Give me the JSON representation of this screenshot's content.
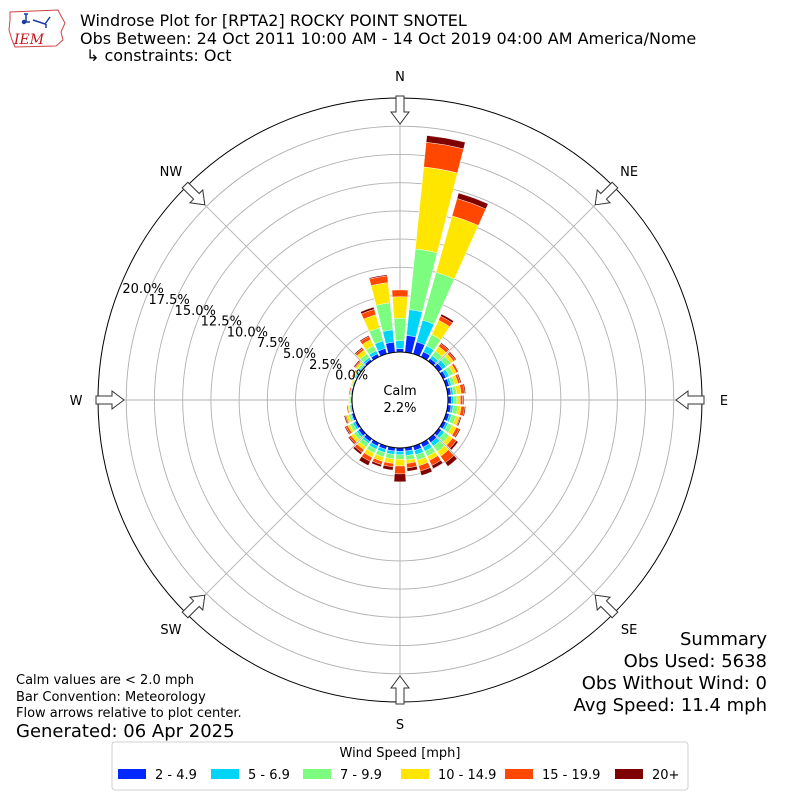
{
  "header": {
    "title_line1": "Windrose Plot for [RPTA2] ROCKY POINT SNOTEL",
    "title_line2": "Obs Between: 24 Oct 2011 10:00 AM - 14 Oct 2019 04:00 AM America/Nome",
    "title_line3": "↳ constraints: Oct",
    "logo_text": "IEM"
  },
  "summary": {
    "heading": "Summary",
    "obs_used": "Obs Used: 5638",
    "obs_without_wind": "Obs Without Wind: 0",
    "avg_speed": "Avg Speed: 11.4 mph"
  },
  "notes": {
    "line1": "Calm values are < 2.0 mph",
    "line2": "Bar Convention: Meteorology",
    "line3": "Flow arrows relative to plot center.",
    "generated": "Generated: 06 Apr 2025"
  },
  "chart_data": {
    "type": "windrose",
    "calm_label": "Calm",
    "calm_value": "2.2%",
    "ring_labels": [
      "0.0%",
      "2.5%",
      "5.0%",
      "7.5%",
      "10.0%",
      "12.5%",
      "15.0%",
      "17.5%",
      "20.0%"
    ],
    "rlim": [
      0,
      22.5
    ],
    "compass_labels": [
      "N",
      "NE",
      "E",
      "SE",
      "S",
      "SW",
      "W",
      "NW"
    ],
    "legend_title": "Wind Speed [mph]",
    "bins": [
      "2 - 4.9",
      "5 - 6.9",
      "7 - 9.9",
      "10 - 14.9",
      "15 - 19.9",
      "20+"
    ],
    "colors": [
      "#0028ff",
      "#00d5f7",
      "#7cfd7f",
      "#ffe600",
      "#ff4700",
      "#7f0000"
    ],
    "directions_deg": [
      0,
      10,
      20,
      30,
      40,
      50,
      60,
      70,
      80,
      90,
      100,
      110,
      120,
      130,
      140,
      150,
      160,
      170,
      180,
      190,
      200,
      210,
      220,
      230,
      240,
      250,
      260,
      270,
      280,
      290,
      300,
      310,
      320,
      330,
      340,
      350
    ],
    "cumulative": [
      [
        0.3,
        1.0,
        3.0,
        4.9,
        5.5,
        5.5
      ],
      [
        1.5,
        3.8,
        9.2,
        16.5,
        18.7,
        19.3
      ],
      [
        1.1,
        3.1,
        7.5,
        12.7,
        14.3,
        14.8
      ],
      [
        0.5,
        1.1,
        2.2,
        3.6,
        4.0,
        4.2
      ],
      [
        0.3,
        0.6,
        1.1,
        1.6,
        1.9,
        2.0
      ],
      [
        0.4,
        0.8,
        1.3,
        1.6,
        1.8,
        1.9
      ],
      [
        0.3,
        0.6,
        1.0,
        1.3,
        1.5,
        1.5
      ],
      [
        0.3,
        0.5,
        0.8,
        1.1,
        1.3,
        1.4
      ],
      [
        0.3,
        0.5,
        0.8,
        1.2,
        1.5,
        1.6
      ],
      [
        0.3,
        0.5,
        0.8,
        1.1,
        1.3,
        1.4
      ],
      [
        0.3,
        0.5,
        0.9,
        1.2,
        1.5,
        1.6
      ],
      [
        0.3,
        0.5,
        0.9,
        1.2,
        1.3,
        1.4
      ],
      [
        0.3,
        0.5,
        0.9,
        1.3,
        1.6,
        1.7
      ],
      [
        0.3,
        0.6,
        1.1,
        1.5,
        1.9,
        2.1
      ],
      [
        0.4,
        0.8,
        1.4,
        1.9,
        2.6,
        3.0
      ],
      [
        0.4,
        0.8,
        1.3,
        1.7,
        2.2,
        2.5
      ],
      [
        0.4,
        0.8,
        1.3,
        1.8,
        2.3,
        2.7
      ],
      [
        0.3,
        0.7,
        1.1,
        1.4,
        1.8,
        2.1
      ],
      [
        0.3,
        0.6,
        1.0,
        1.6,
        2.3,
        3.0
      ],
      [
        0.3,
        0.6,
        1.0,
        1.4,
        1.7,
        2.0
      ],
      [
        0.3,
        0.6,
        1.0,
        1.4,
        1.7,
        1.9
      ],
      [
        0.3,
        0.6,
        1.0,
        1.4,
        1.8,
        2.2
      ],
      [
        0.3,
        0.5,
        0.9,
        1.2,
        1.5,
        1.7
      ],
      [
        0.3,
        0.5,
        0.8,
        1.1,
        1.3,
        1.4
      ],
      [
        0.2,
        0.4,
        0.7,
        0.9,
        1.1,
        1.2
      ],
      [
        0.2,
        0.3,
        0.5,
        0.7,
        0.8,
        0.9
      ],
      [
        0.1,
        0.2,
        0.3,
        0.4,
        0.5,
        0.5
      ],
      [
        0.1,
        0.1,
        0.2,
        0.3,
        0.3,
        0.3
      ],
      [
        0.1,
        0.1,
        0.2,
        0.2,
        0.3,
        0.3
      ],
      [
        0.1,
        0.1,
        0.2,
        0.3,
        0.3,
        0.3
      ],
      [
        0.1,
        0.2,
        0.3,
        0.4,
        0.5,
        0.5
      ],
      [
        0.1,
        0.2,
        0.4,
        0.6,
        0.7,
        0.8
      ],
      [
        0.2,
        0.4,
        0.8,
        1.2,
        1.4,
        1.5
      ],
      [
        0.3,
        0.6,
        1.1,
        1.7,
        2.0,
        2.1
      ],
      [
        0.5,
        1.2,
        2.4,
        3.6,
        4.1,
        4.3
      ],
      [
        0.9,
        2.0,
        4.4,
        6.2,
        6.8,
        6.9
      ]
    ]
  }
}
